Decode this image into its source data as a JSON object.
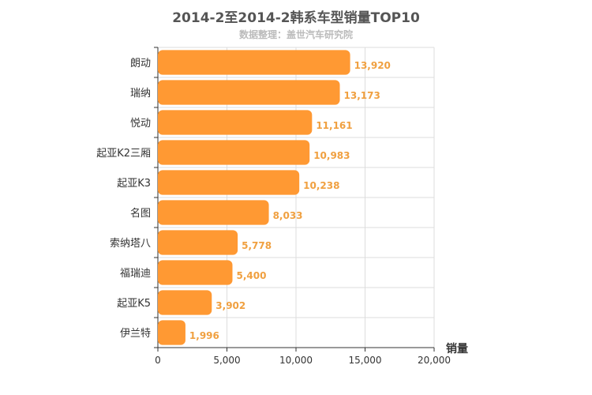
{
  "chart_data": {
    "type": "bar",
    "orientation": "horizontal",
    "title": "2014-2至2014-2韩系车型销量TOP10",
    "subtitle": "数据整理：盖世汽车研究院",
    "categories": [
      "朗动",
      "瑞纳",
      "悦动",
      "起亚K2三厢",
      "起亚K3",
      "名图",
      "索纳塔八",
      "福瑞迪",
      "起亚K5",
      "伊兰特"
    ],
    "values": [
      13920,
      13173,
      11161,
      10983,
      10238,
      8033,
      5778,
      5400,
      3902,
      1996
    ],
    "value_labels": [
      "13,920",
      "13,173",
      "11,161",
      "10,983",
      "10,238",
      "8,033",
      "5,778",
      "5,400",
      "3,902",
      "1,996"
    ],
    "xlabel": "销量",
    "ylabel": "",
    "xlim": [
      0,
      20000
    ],
    "xticks": [
      0,
      5000,
      10000,
      15000,
      20000
    ],
    "xtick_labels": [
      "0",
      "5,000",
      "10,000",
      "15,000",
      "20,000"
    ],
    "grid": true,
    "legend": "none",
    "bar_color": "#ff9933",
    "value_label_color": "#f0a040"
  }
}
